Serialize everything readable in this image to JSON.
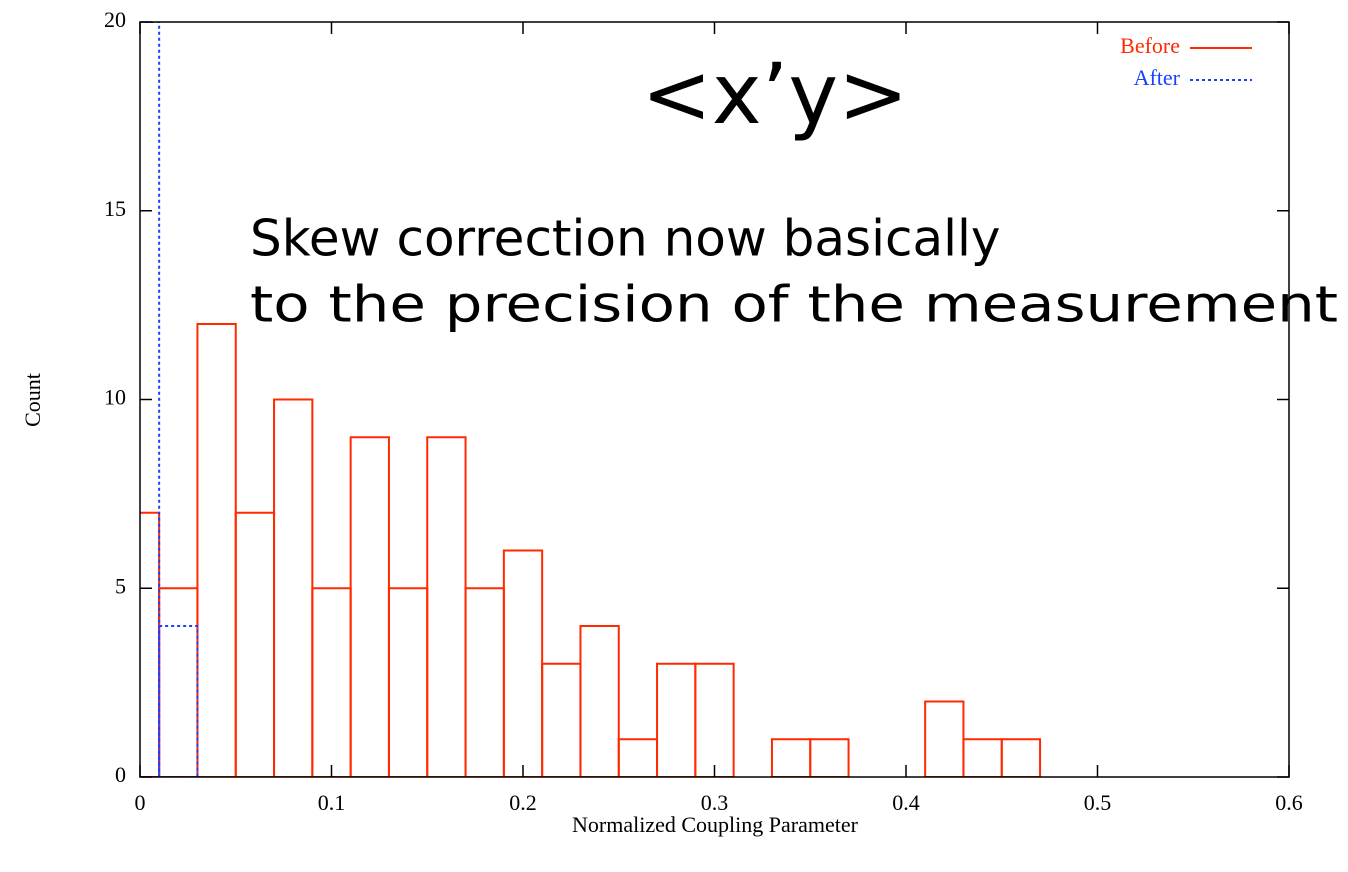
{
  "chart_data": {
    "type": "histogram",
    "annotations": [
      "<x’y>",
      "Skew correction now basically",
      "to the precision of the measurement"
    ],
    "xlabel": "Normalized Coupling Parameter",
    "ylabel": "Count",
    "bins": [
      -0.01,
      0.01,
      0.03,
      0.05,
      0.07,
      0.09,
      0.11,
      0.13,
      0.15,
      0.17,
      0.19,
      0.21,
      0.23,
      0.25,
      0.27,
      0.29,
      0.31,
      0.33,
      0.35,
      0.37,
      0.39,
      0.41,
      0.43,
      0.45,
      0.47,
      0.49,
      0.51,
      0.53,
      0.55,
      0.57,
      0.59,
      0.61
    ],
    "series": [
      {
        "name": "Before",
        "color": "#ff2a00",
        "dash": false,
        "values": [
          7,
          5,
          12,
          7,
          10,
          5,
          9,
          5,
          9,
          5,
          6,
          3,
          4,
          1,
          3,
          3,
          0,
          1,
          1,
          0,
          0,
          2,
          1,
          1,
          0,
          0,
          0,
          0,
          0,
          0,
          0
        ]
      },
      {
        "name": "After",
        "color": "#1a3fff",
        "dash": true,
        "values": [
          20,
          4,
          0,
          0,
          0,
          0,
          0,
          0,
          0,
          0,
          0,
          0,
          0,
          0,
          0,
          0,
          0,
          0,
          0,
          0,
          0,
          0,
          0,
          0,
          0,
          0,
          0,
          0,
          0,
          0,
          0
        ]
      }
    ],
    "xlim": [
      0,
      0.6
    ],
    "xticks": [
      0,
      0.1,
      0.2,
      0.3,
      0.4,
      0.5,
      0.6
    ],
    "ylim": [
      0,
      20
    ],
    "yticks": [
      0,
      5,
      10,
      15,
      20
    ],
    "grid": false,
    "legend": "top-right"
  }
}
